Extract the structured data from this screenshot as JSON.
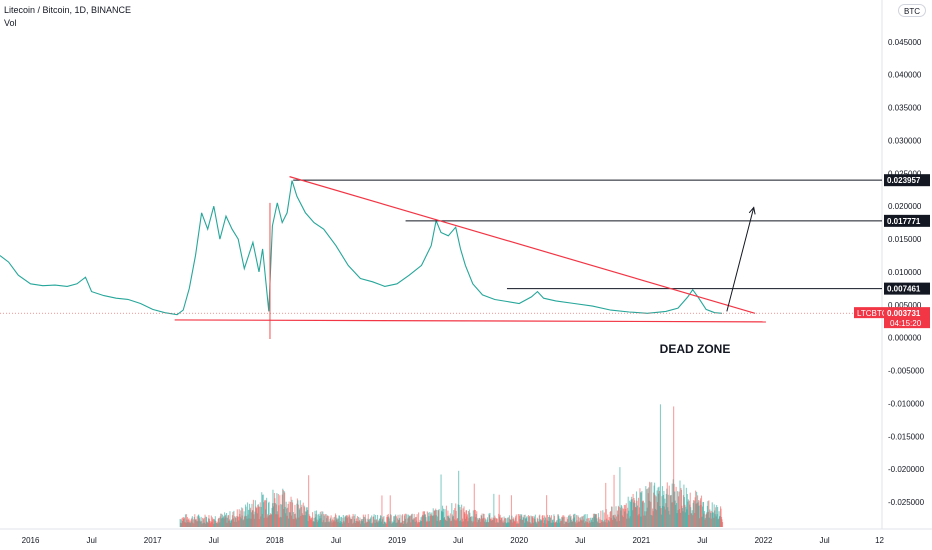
{
  "header": {
    "title": "Litecoin / Bitcoin, 1D, BINANCE",
    "vol_label": "Vol",
    "currency_button": "BTC"
  },
  "colors": {
    "up": "#26a69a",
    "down": "#ef5350",
    "trendline": "#f23645",
    "hline": "#131722",
    "price_label_bg": "#f23645",
    "axis_text": "#131722"
  },
  "chart_data": {
    "type": "line",
    "symbol": "LTCBTC",
    "last_price": "0.003731",
    "countdown": "04:15:20",
    "y_ticks": [
      "0.045000",
      "0.040000",
      "0.035000",
      "0.030000",
      "0.025000",
      "0.020000",
      "0.015000",
      "0.010000",
      "0.005000",
      "0.000000",
      "-0.005000",
      "-0.010000",
      "-0.015000",
      "-0.020000",
      "-0.025000"
    ],
    "ylim": [
      -0.0285,
      0.05
    ],
    "x_ticks": [
      {
        "label": "2016",
        "t": 2016.0
      },
      {
        "label": "Jul",
        "t": 2016.5
      },
      {
        "label": "2017",
        "t": 2017.0
      },
      {
        "label": "Jul",
        "t": 2017.5
      },
      {
        "label": "2018",
        "t": 2018.0
      },
      {
        "label": "Jul",
        "t": 2018.5
      },
      {
        "label": "2019",
        "t": 2019.0
      },
      {
        "label": "Jul",
        "t": 2019.5
      },
      {
        "label": "2020",
        "t": 2020.0
      },
      {
        "label": "Jul",
        "t": 2020.5
      },
      {
        "label": "2021",
        "t": 2021.0
      },
      {
        "label": "Jul",
        "t": 2021.5
      },
      {
        "label": "2022",
        "t": 2022.0
      },
      {
        "label": "Jul",
        "t": 2022.5
      },
      {
        "label": "12",
        "t": 2022.95
      }
    ],
    "price_series": [
      [
        2015.75,
        0.0125
      ],
      [
        2015.82,
        0.0115
      ],
      [
        2015.9,
        0.0095
      ],
      [
        2016.0,
        0.0082
      ],
      [
        2016.1,
        0.0079
      ],
      [
        2016.2,
        0.008
      ],
      [
        2016.3,
        0.0078
      ],
      [
        2016.38,
        0.0082
      ],
      [
        2016.45,
        0.0092
      ],
      [
        2016.5,
        0.007
      ],
      [
        2016.6,
        0.0064
      ],
      [
        2016.7,
        0.006
      ],
      [
        2016.8,
        0.0058
      ],
      [
        2016.9,
        0.0052
      ],
      [
        2017.0,
        0.0043
      ],
      [
        2017.1,
        0.0038
      ],
      [
        2017.2,
        0.0035
      ],
      [
        2017.25,
        0.0042
      ],
      [
        2017.3,
        0.0075
      ],
      [
        2017.35,
        0.0125
      ],
      [
        2017.4,
        0.019
      ],
      [
        2017.45,
        0.0165
      ],
      [
        2017.5,
        0.02
      ],
      [
        2017.55,
        0.015
      ],
      [
        2017.6,
        0.0185
      ],
      [
        2017.65,
        0.0165
      ],
      [
        2017.7,
        0.015
      ],
      [
        2017.75,
        0.0105
      ],
      [
        2017.82,
        0.0145
      ],
      [
        2017.87,
        0.01
      ],
      [
        2017.9,
        0.0135
      ],
      [
        2017.95,
        0.004
      ],
      [
        2017.98,
        0.017
      ],
      [
        2018.02,
        0.0205
      ],
      [
        2018.06,
        0.0175
      ],
      [
        2018.1,
        0.019
      ],
      [
        2018.14,
        0.0239
      ],
      [
        2018.18,
        0.0215
      ],
      [
        2018.25,
        0.019
      ],
      [
        2018.32,
        0.0175
      ],
      [
        2018.4,
        0.0165
      ],
      [
        2018.5,
        0.014
      ],
      [
        2018.6,
        0.011
      ],
      [
        2018.7,
        0.009
      ],
      [
        2018.8,
        0.0085
      ],
      [
        2018.9,
        0.0078
      ],
      [
        2019.0,
        0.0082
      ],
      [
        2019.1,
        0.0095
      ],
      [
        2019.2,
        0.011
      ],
      [
        2019.28,
        0.014
      ],
      [
        2019.32,
        0.0178
      ],
      [
        2019.36,
        0.016
      ],
      [
        2019.42,
        0.0155
      ],
      [
        2019.48,
        0.0168
      ],
      [
        2019.52,
        0.0135
      ],
      [
        2019.56,
        0.011
      ],
      [
        2019.62,
        0.0082
      ],
      [
        2019.7,
        0.0065
      ],
      [
        2019.8,
        0.0058
      ],
      [
        2019.9,
        0.0055
      ],
      [
        2020.0,
        0.0052
      ],
      [
        2020.1,
        0.0062
      ],
      [
        2020.15,
        0.007
      ],
      [
        2020.2,
        0.006
      ],
      [
        2020.3,
        0.0056
      ],
      [
        2020.45,
        0.0052
      ],
      [
        2020.6,
        0.0048
      ],
      [
        2020.75,
        0.0042
      ],
      [
        2020.9,
        0.0039
      ],
      [
        2021.05,
        0.0037
      ],
      [
        2021.2,
        0.004
      ],
      [
        2021.3,
        0.0045
      ],
      [
        2021.38,
        0.0062
      ],
      [
        2021.42,
        0.0073
      ],
      [
        2021.47,
        0.006
      ],
      [
        2021.53,
        0.0043
      ],
      [
        2021.6,
        0.0038
      ],
      [
        2021.66,
        0.0037
      ]
    ],
    "volume_x_range": [
      2017.22,
      2021.66
    ],
    "horizontal_levels": [
      {
        "label": "0.023957",
        "value": 0.023957,
        "x_start": 2018.15
      },
      {
        "label": "0.017771",
        "value": 0.017771,
        "x_start": 2019.07
      },
      {
        "label": "0.007461",
        "value": 0.007461,
        "x_start": 2019.9
      }
    ],
    "trendlines": [
      {
        "from": [
          2018.12,
          0.0245
        ],
        "to": [
          2021.93,
          0.0037
        ]
      },
      {
        "from": [
          2017.18,
          0.0027
        ],
        "to": [
          2022.02,
          0.0024
        ]
      }
    ],
    "arrow": {
      "from": [
        2021.7,
        0.004
      ],
      "to": [
        2021.92,
        0.0198
      ]
    },
    "annotation": {
      "text": "DEAD ZONE",
      "x": 2021.15,
      "y": -0.0008
    }
  }
}
